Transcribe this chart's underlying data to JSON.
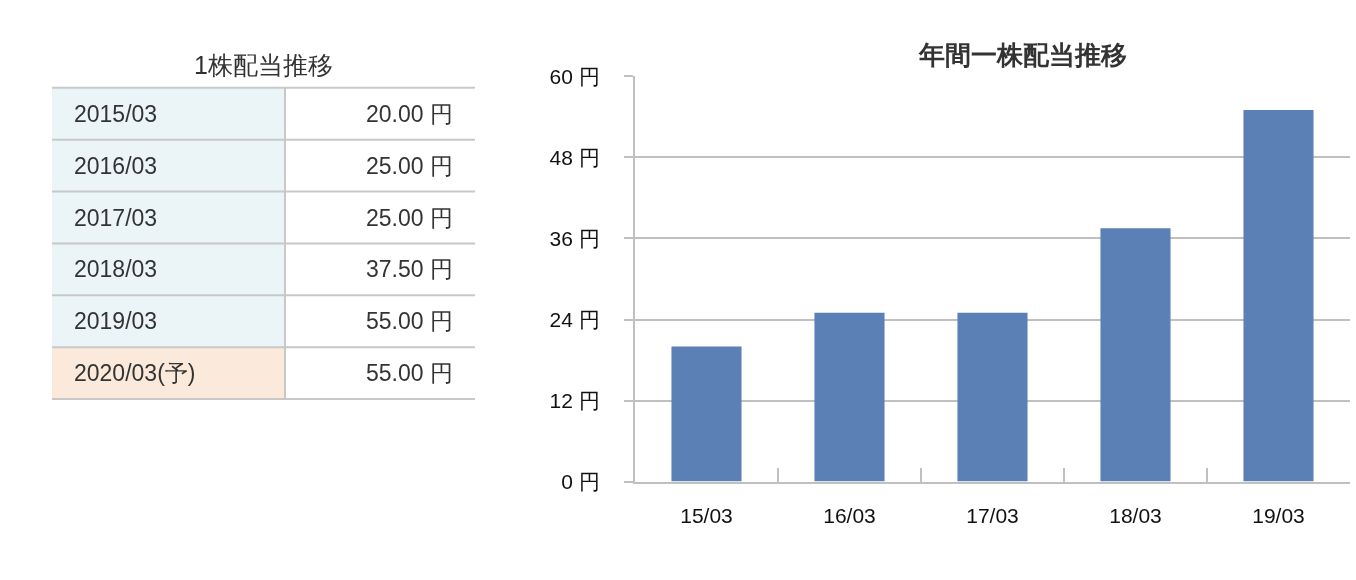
{
  "chart_data": [
    {
      "type": "other",
      "title": "1株配当推移",
      "categories": [
        "2015/03",
        "2016/03",
        "2017/03",
        "2018/03",
        "2019/03",
        "2020/03(予)"
      ],
      "values": [
        20,
        25,
        25,
        37.5,
        55,
        55
      ],
      "value_labels": [
        "20.00 円",
        "25.00 円",
        "25.00 円",
        "37.50 円",
        "55.00 円",
        "55.00 円"
      ],
      "colors": [
        "#ebf5f8",
        "#ebf5f8",
        "#ebf5f8",
        "#ebf5f8",
        "#ebf5f8",
        "#fbeadb"
      ]
    },
    {
      "type": "bar",
      "title": "年間一株配当推移",
      "categories": [
        "15/03",
        "16/03",
        "17/03",
        "18/03",
        "19/03"
      ],
      "values": [
        20,
        25,
        25,
        37.5,
        55
      ],
      "color": "#5a80b5",
      "ylim": [
        0,
        60
      ],
      "yticks": [
        {
          "value": 0,
          "label": "0 円"
        },
        {
          "value": 12,
          "label": "12 円"
        },
        {
          "value": 24,
          "label": "24 円"
        },
        {
          "value": 36,
          "label": "36 円"
        },
        {
          "value": 48,
          "label": "48 円"
        },
        {
          "value": 60,
          "label": "60 円"
        }
      ],
      "grid": "y"
    }
  ]
}
